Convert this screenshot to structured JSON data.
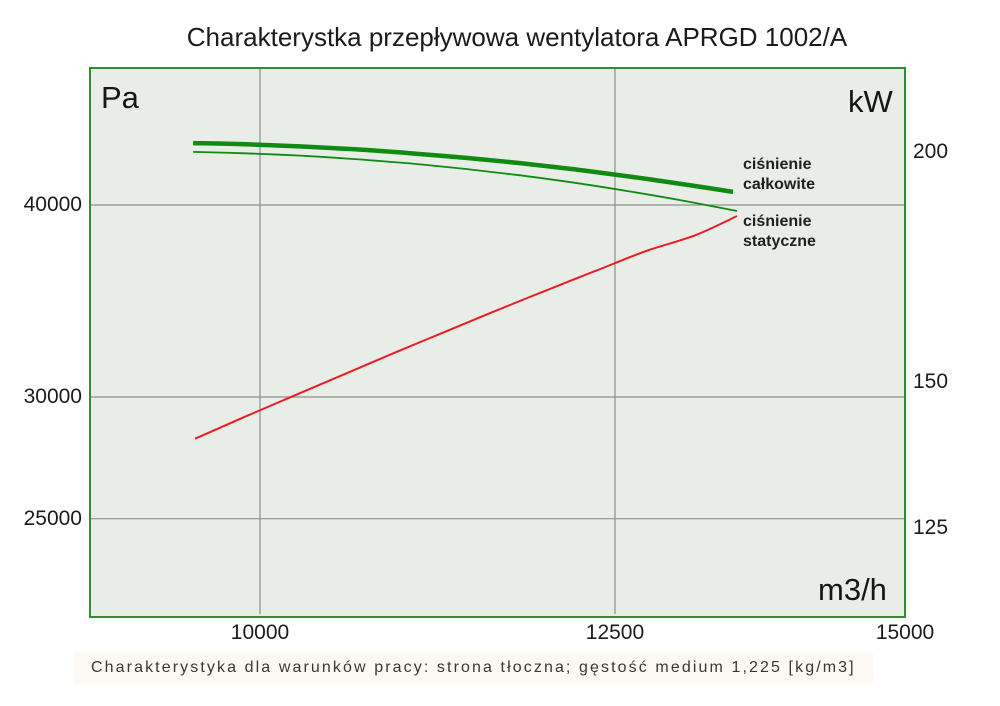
{
  "title": "Charakterystka przepływowa wentylatora APRGD 1002/A",
  "footnote": "Charakterystyka dla warunków pracy: strona tłoczna; gęstość medium 1,225 [kg/m3]",
  "colors": {
    "plot_background": "#e8ede8",
    "plot_border": "#2f8f2f",
    "gridline": "#8f8f8f",
    "pressure_curves": "#108a10",
    "power_curve": "#ed1c24"
  },
  "chart_data": {
    "type": "line",
    "title": "Charakterystka przepływowa wentylatora APRGD 1002/A",
    "x_axis": {
      "label": "m3/h",
      "scale": "log",
      "ticks": [
        10000,
        12500,
        15000
      ],
      "range": [
        9000,
        15000
      ]
    },
    "y_axis_left": {
      "label": "Pa",
      "scale": "log",
      "ticks": [
        40000,
        30000,
        25000
      ]
    },
    "y_axis_right": {
      "label": "kW",
      "scale": "log",
      "ticks": [
        200,
        150,
        125
      ]
    },
    "grid": "left-and-x-ticks-only",
    "series": [
      {
        "name": "ciśnienie całkowite",
        "axis": "left",
        "color": "#108a10",
        "stroke_width": 4.5,
        "points": [
          [
            9588,
            43890
          ],
          [
            9906,
            43810
          ],
          [
            10255,
            43670
          ],
          [
            10615,
            43480
          ],
          [
            10989,
            43230
          ],
          [
            11375,
            42930
          ],
          [
            11776,
            42590
          ],
          [
            12190,
            42190
          ],
          [
            12619,
            41740
          ],
          [
            13062,
            41250
          ],
          [
            13463,
            40790
          ]
        ]
      },
      {
        "name": "ciśnienie statyczne",
        "axis": "left",
        "color": "#108a10",
        "stroke_width": 1.8,
        "points": [
          [
            9588,
            43310
          ],
          [
            9906,
            43220
          ],
          [
            10255,
            43070
          ],
          [
            10615,
            42850
          ],
          [
            10989,
            42570
          ],
          [
            11375,
            42220
          ],
          [
            11776,
            41820
          ],
          [
            12190,
            41350
          ],
          [
            12619,
            40820
          ],
          [
            13062,
            40240
          ],
          [
            13497,
            39640
          ]
        ]
      },
      {
        "name": "",
        "axis": "right",
        "color": "#ed1c24",
        "stroke_width": 2,
        "points": [
          [
            9600,
            139.7
          ],
          [
            9906,
            143.6
          ],
          [
            10222,
            147.5
          ],
          [
            10549,
            151.5
          ],
          [
            10886,
            155.6
          ],
          [
            11233,
            159.7
          ],
          [
            11592,
            163.9
          ],
          [
            11962,
            168.1
          ],
          [
            12344,
            172.3
          ],
          [
            12738,
            176.6
          ],
          [
            13145,
            180.2
          ],
          [
            13497,
            184.6
          ]
        ]
      }
    ]
  }
}
